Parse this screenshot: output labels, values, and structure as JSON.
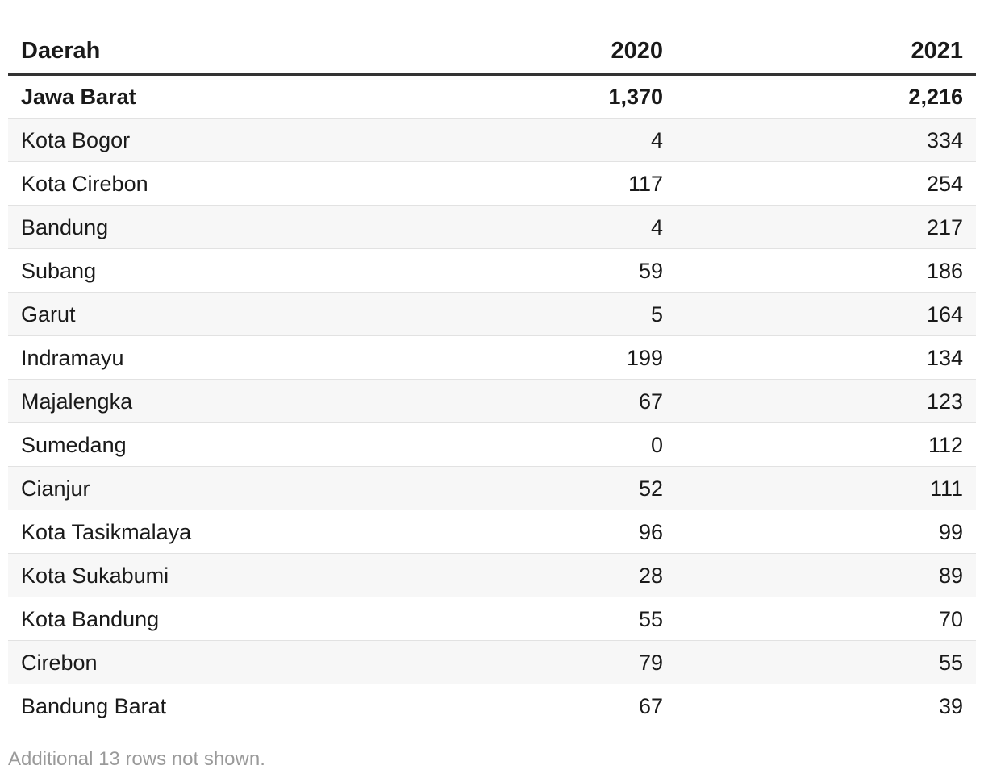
{
  "chart_data": {
    "type": "table",
    "columns": [
      "Daerah",
      "2020",
      "2021"
    ],
    "rows": [
      {
        "name": "Jawa Barat",
        "v2020": "1,370",
        "v2021": "2,216",
        "bold": true
      },
      {
        "name": "Kota Bogor",
        "v2020": "4",
        "v2021": "334"
      },
      {
        "name": "Kota Cirebon",
        "v2020": "117",
        "v2021": "254"
      },
      {
        "name": "Bandung",
        "v2020": "4",
        "v2021": "217"
      },
      {
        "name": "Subang",
        "v2020": "59",
        "v2021": "186"
      },
      {
        "name": "Garut",
        "v2020": "5",
        "v2021": "164"
      },
      {
        "name": "Indramayu",
        "v2020": "199",
        "v2021": "134"
      },
      {
        "name": "Majalengka",
        "v2020": "67",
        "v2021": "123"
      },
      {
        "name": "Sumedang",
        "v2020": "0",
        "v2021": "112"
      },
      {
        "name": "Cianjur",
        "v2020": "52",
        "v2021": "111"
      },
      {
        "name": "Kota Tasikmalaya",
        "v2020": "96",
        "v2021": "99"
      },
      {
        "name": "Kota Sukabumi",
        "v2020": "28",
        "v2021": "89"
      },
      {
        "name": "Kota Bandung",
        "v2020": "55",
        "v2021": "70"
      },
      {
        "name": "Cirebon",
        "v2020": "79",
        "v2021": "55"
      },
      {
        "name": "Bandung Barat",
        "v2020": "67",
        "v2021": "39"
      }
    ],
    "footnote": "Additional 13 rows not shown."
  }
}
